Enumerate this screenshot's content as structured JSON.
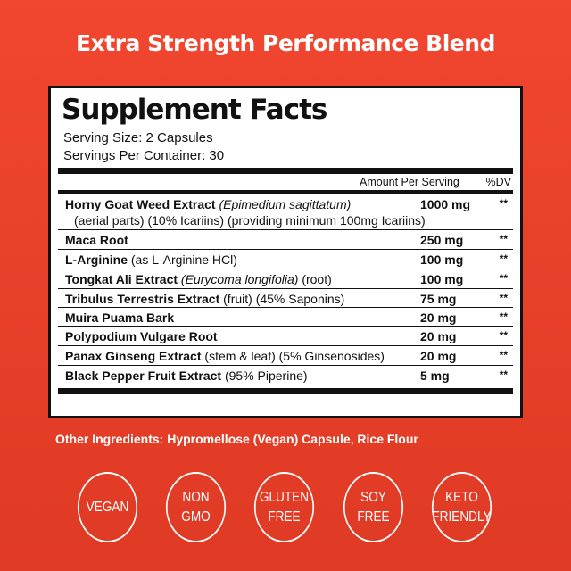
{
  "title": "Extra Strength Performance Blend",
  "label": {
    "heading": "Supplement Facts",
    "serving_size": "Serving Size: 2 Capsules",
    "servings_per_container": "Servings Per Container: 30",
    "col_amount": "Amount Per Serving",
    "col_dv": "%DV",
    "rows": [
      {
        "name": "Horny Goat Weed Extract",
        "latin": "(Epimedium sagittatum)",
        "extra": "",
        "sub": "(aerial parts) (10% Icariins) (providing minimum 100mg Icariins)",
        "amount": "1000 mg",
        "dv": "**"
      },
      {
        "name": "Maca Root",
        "latin": "",
        "extra": "",
        "amount": "250 mg",
        "dv": "**"
      },
      {
        "name": "L-Arginine",
        "latin": "",
        "extra": "(as L-Arginine HCl)",
        "amount": "100 mg",
        "dv": "**"
      },
      {
        "name": "Tongkat Ali Extract",
        "latin": "(Eurycoma longifolia)",
        "extra": "(root)",
        "amount": "100 mg",
        "dv": "**"
      },
      {
        "name": "Tribulus Terrestris Extract",
        "latin": "",
        "extra": "(fruit) (45% Saponins)",
        "amount": "75 mg",
        "dv": "**"
      },
      {
        "name": "Muira Puama Bark",
        "latin": "",
        "extra": "",
        "amount": "20 mg",
        "dv": "**"
      },
      {
        "name": "Polypodium Vulgare Root",
        "latin": "",
        "extra": "",
        "amount": "20 mg",
        "dv": "**"
      },
      {
        "name": "Panax Ginseng Extract",
        "latin": "",
        "extra": "(stem & leaf) (5% Ginsenosides)",
        "amount": "20 mg",
        "dv": "**"
      },
      {
        "name": "Black Pepper Fruit Extract",
        "latin": "",
        "extra": "(95% Piperine)",
        "amount": "5 mg",
        "dv": "**"
      }
    ]
  },
  "other_ingredients": "Other Ingredients: Hypromellose (Vegan) Capsule, Rice Flour",
  "badges": [
    [
      "VEGAN"
    ],
    [
      "NON",
      "GMO"
    ],
    [
      "GLUTEN",
      "FREE"
    ],
    [
      "SOY",
      "FREE"
    ],
    [
      "KETO",
      "FRIENDLY"
    ]
  ]
}
